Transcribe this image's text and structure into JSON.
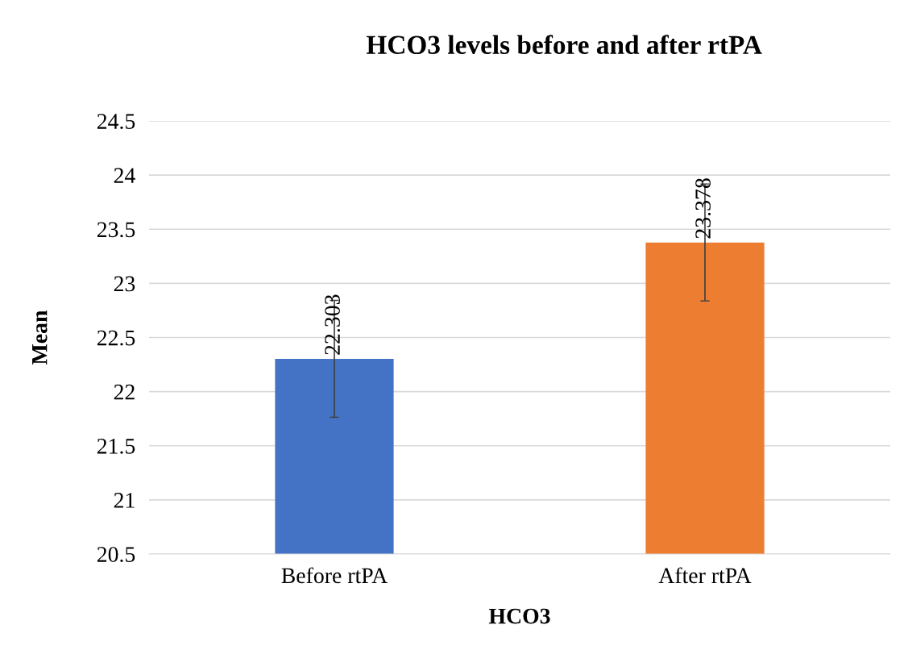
{
  "chart_data": {
    "type": "bar",
    "title": "HCO3 levels before and after rtPA",
    "xlabel": "HCO3",
    "ylabel": "Mean",
    "categories": [
      "Before rtPA",
      "After rtPA"
    ],
    "values": [
      22.303,
      23.378
    ],
    "colors": [
      "#4472c4",
      "#ed7d31"
    ],
    "errors": [
      0.54,
      0.54
    ],
    "data_labels": true,
    "ylim": [
      20.5,
      24.5
    ],
    "yticks": [
      20.5,
      21,
      21.5,
      22,
      22.5,
      23,
      23.5,
      24,
      24.5
    ],
    "grid": "y",
    "legend": false
  }
}
